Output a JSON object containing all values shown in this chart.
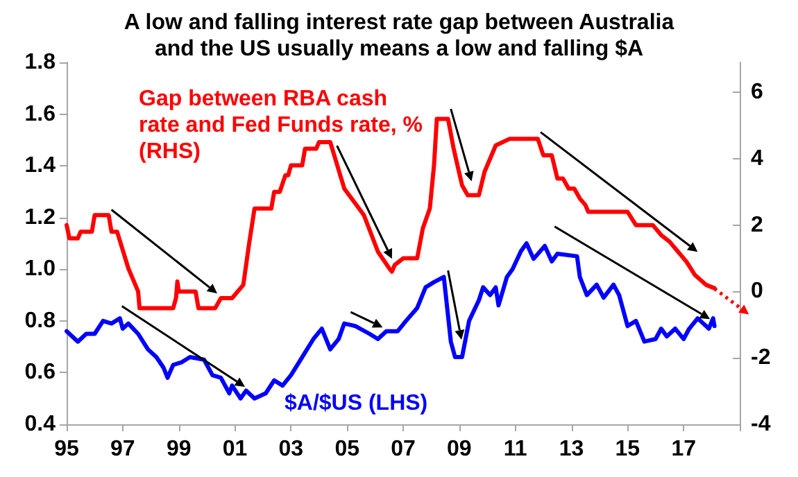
{
  "chart_data": {
    "type": "line",
    "title": "A low and falling interest rate gap between Australia\nand the US usually means a low and falling $A",
    "xlim": [
      1995,
      2019
    ],
    "xticks": [
      {
        "value": 1995,
        "label": "95"
      },
      {
        "value": 1997,
        "label": "97"
      },
      {
        "value": 1999,
        "label": "99"
      },
      {
        "value": 2001,
        "label": "01"
      },
      {
        "value": 2003,
        "label": "03"
      },
      {
        "value": 2005,
        "label": "05"
      },
      {
        "value": 2007,
        "label": "07"
      },
      {
        "value": 2009,
        "label": "09"
      },
      {
        "value": 2011,
        "label": "11"
      },
      {
        "value": 2013,
        "label": "13"
      },
      {
        "value": 2015,
        "label": "15"
      },
      {
        "value": 2017,
        "label": "17"
      },
      {
        "value": 2019,
        "label": null
      }
    ],
    "ylim": [
      0.4,
      1.8
    ],
    "yticks": [
      0.4,
      0.6,
      0.8,
      {
        "value": 1,
        "label": "1.0"
      },
      1.2,
      1.4,
      1.6,
      1.8
    ],
    "y2lim": [
      -4,
      6.9
    ],
    "y2ticks": [
      -4,
      -2,
      0,
      2,
      4,
      6
    ],
    "grid": false,
    "legend": false,
    "marker": "none",
    "line_style": "solid",
    "series": [
      {
        "name": "Gap between RBA cash rate and Fed Funds rate, % (RHS)",
        "color": "#ff0000",
        "axis": "y2",
        "x": [
          1995.0,
          1995.1,
          1995.4,
          1995.5,
          1995.9,
          1996.0,
          1996.5,
          1996.6,
          1996.8,
          1997.2,
          1997.55,
          1997.6,
          1998.8,
          1998.9,
          1998.95,
          1999.0,
          1999.6,
          1999.7,
          2000.3,
          2000.5,
          2000.9,
          2001.3,
          2001.5,
          2001.7,
          2002.3,
          2002.4,
          2002.6,
          2002.8,
          2002.9,
          2003.0,
          2003.4,
          2003.5,
          2003.9,
          2004.0,
          2004.4,
          2004.9,
          2005.6,
          2006.1,
          2006.5,
          2006.6,
          2006.7,
          2007.0,
          2007.5,
          2007.7,
          2007.95,
          2008.1,
          2008.2,
          2008.6,
          2008.8,
          2009.1,
          2009.3,
          2009.7,
          2009.9,
          2010.3,
          2010.8,
          2011.8,
          2012.0,
          2012.3,
          2012.5,
          2012.7,
          2012.9,
          2013.1,
          2013.3,
          2013.5,
          2013.6,
          2015.0,
          2015.3,
          2015.9,
          2016.2,
          2016.5,
          2016.8,
          2017.1,
          2017.4,
          2017.8,
          2018.1
        ],
        "values": [
          2.0,
          1.6,
          1.6,
          1.8,
          1.8,
          2.3,
          2.3,
          1.8,
          1.8,
          0.7,
          0.0,
          -0.5,
          -0.5,
          -0.2,
          0.3,
          0.0,
          0.0,
          -0.5,
          -0.5,
          -0.2,
          -0.2,
          0.2,
          1.4,
          2.5,
          2.5,
          3.0,
          3.0,
          3.5,
          3.5,
          3.8,
          3.8,
          4.3,
          4.3,
          4.5,
          4.5,
          3.1,
          2.3,
          1.2,
          0.7,
          0.6,
          0.8,
          1.0,
          1.0,
          1.9,
          2.5,
          3.8,
          5.2,
          5.2,
          4.3,
          3.2,
          2.9,
          2.9,
          3.6,
          4.4,
          4.6,
          4.6,
          4.1,
          4.1,
          3.4,
          3.4,
          3.1,
          3.1,
          2.8,
          2.6,
          2.4,
          2.4,
          2.0,
          2.0,
          1.7,
          1.5,
          1.2,
          0.9,
          0.5,
          0.2,
          0.1
        ]
      },
      {
        "name": "$A/$US (LHS)",
        "color": "#0000ff",
        "x": [
          1995.0,
          1995.4,
          1995.7,
          1996.0,
          1996.3,
          1996.6,
          1996.9,
          1997.0,
          1997.2,
          1997.55,
          1997.9,
          1998.2,
          1998.45,
          1998.6,
          1998.8,
          1999.1,
          1999.4,
          1999.9,
          2000.2,
          2000.5,
          2000.8,
          2000.9,
          2001.2,
          2001.4,
          2001.7,
          2002.1,
          2002.4,
          2002.7,
          2003.0,
          2003.4,
          2003.8,
          2004.1,
          2004.4,
          2004.7,
          2004.9,
          2005.3,
          2005.8,
          2006.1,
          2006.4,
          2006.8,
          2007.1,
          2007.5,
          2007.8,
          2008.1,
          2008.45,
          2008.5,
          2008.7,
          2008.85,
          2009.1,
          2009.35,
          2009.7,
          2009.85,
          2010.1,
          2010.3,
          2010.4,
          2010.7,
          2010.9,
          2011.2,
          2011.4,
          2011.65,
          2012.05,
          2012.3,
          2012.5,
          2013.2,
          2013.3,
          2013.55,
          2013.9,
          2014.15,
          2014.5,
          2014.7,
          2015.0,
          2015.3,
          2015.6,
          2016.0,
          2016.2,
          2016.4,
          2016.7,
          2017.0,
          2017.2,
          2017.5,
          2017.9,
          2018.05,
          2018.1
        ],
        "values": [
          0.76,
          0.72,
          0.75,
          0.75,
          0.8,
          0.79,
          0.81,
          0.77,
          0.79,
          0.75,
          0.69,
          0.66,
          0.62,
          0.58,
          0.63,
          0.64,
          0.66,
          0.65,
          0.59,
          0.58,
          0.52,
          0.55,
          0.5,
          0.53,
          0.5,
          0.52,
          0.57,
          0.55,
          0.59,
          0.66,
          0.73,
          0.77,
          0.69,
          0.73,
          0.79,
          0.78,
          0.75,
          0.73,
          0.76,
          0.76,
          0.8,
          0.85,
          0.93,
          0.95,
          0.97,
          0.92,
          0.72,
          0.66,
          0.66,
          0.8,
          0.88,
          0.93,
          0.9,
          0.93,
          0.86,
          0.97,
          1.0,
          1.07,
          1.1,
          1.04,
          1.09,
          1.03,
          1.06,
          1.05,
          0.97,
          0.9,
          0.94,
          0.89,
          0.94,
          0.9,
          0.78,
          0.8,
          0.72,
          0.73,
          0.77,
          0.74,
          0.77,
          0.73,
          0.77,
          0.81,
          0.77,
          0.81,
          0.78
        ]
      }
    ]
  }
}
